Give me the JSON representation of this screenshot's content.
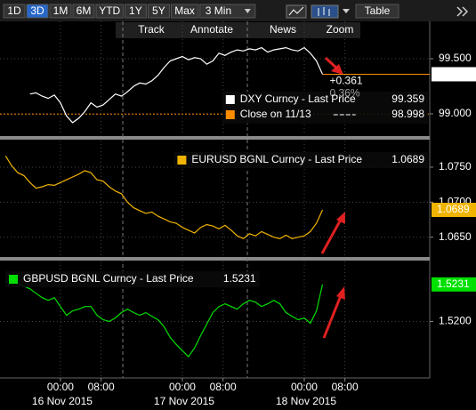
{
  "toolbar": {
    "ranges": [
      "1D",
      "3D",
      "1M",
      "6M",
      "YTD",
      "1Y",
      "5Y",
      "Max"
    ],
    "active": "3D",
    "interval": "3 Min",
    "table": "Table",
    "tools": [
      "Track",
      "Annotate",
      "News",
      "Zoom"
    ]
  },
  "x_axis": {
    "xlim": [
      -11.9,
      72.7
    ],
    "xticks": [
      {
        "value": 0,
        "label": "00:00"
      },
      {
        "value": 8,
        "label": "08:00"
      },
      {
        "value": 24,
        "label": "00:00"
      },
      {
        "value": 32,
        "label": "08:00"
      },
      {
        "value": 48,
        "label": "00:00"
      },
      {
        "value": 56,
        "label": "08:00"
      }
    ],
    "dates": [
      "16 Nov 2015",
      "17 Nov 2015",
      "18 Nov 2015"
    ]
  },
  "chart_data": [
    {
      "type": "line",
      "x": [
        -6,
        -4.8,
        -3.6,
        -2.4,
        -1.2,
        0,
        1.2,
        2.4,
        3.6,
        4.8,
        6,
        7.2,
        8.4,
        9.6,
        10.8,
        12,
        13.2,
        14.4,
        15.6,
        16.8,
        18,
        19.2,
        20.4,
        21.6,
        22.8,
        24,
        25.2,
        26.4,
        27.6,
        28.8,
        30,
        31.2,
        32.4,
        33.6,
        34.8,
        36,
        37.2,
        38.4,
        39.6,
        40.8,
        42,
        43.2,
        44.4,
        45.6,
        46.8,
        48,
        49.2,
        50.4,
        51.6
      ],
      "series": [
        {
          "name": "DXY Curncy - Last Price",
          "color": "#ffffff",
          "values": [
            99.18,
            99.19,
            99.16,
            99.14,
            99.17,
            99.1,
            98.98,
            98.92,
            98.96,
            99.02,
            99.1,
            99.06,
            99.08,
            99.13,
            99.18,
            99.16,
            99.2,
            99.25,
            99.28,
            99.27,
            99.3,
            99.35,
            99.42,
            99.48,
            99.5,
            99.52,
            99.49,
            99.51,
            99.5,
            99.45,
            99.48,
            99.55,
            99.53,
            99.56,
            99.58,
            99.57,
            99.59,
            99.58,
            99.6,
            99.56,
            99.58,
            99.59,
            99.6,
            99.58,
            99.57,
            99.6,
            99.55,
            99.48,
            99.359
          ]
        }
      ],
      "close": {
        "name": "Close on 11/13",
        "color": "#ff8c00",
        "value": 98.998
      },
      "annotations": [
        "+0.361",
        "0.36%"
      ],
      "ylim": [
        98.806,
        99.839
      ],
      "yticks": [
        {
          "value": 99.5,
          "label": "99.500"
        },
        {
          "value": 99.0,
          "label": "99.000"
        }
      ]
    },
    {
      "type": "line",
      "x": [
        -10.8,
        -9.6,
        -8.4,
        -7.2,
        -6,
        -4.8,
        -3.6,
        -2.4,
        -1.2,
        0,
        1.2,
        2.4,
        3.6,
        4.8,
        6,
        7.2,
        8.4,
        9.6,
        10.8,
        12,
        13.2,
        14.4,
        15.6,
        16.8,
        18,
        19.2,
        20.4,
        21.6,
        22.8,
        24,
        25.2,
        26.4,
        27.6,
        28.8,
        30,
        31.2,
        32.4,
        33.6,
        34.8,
        36,
        37.2,
        38.4,
        39.6,
        40.8,
        42,
        43.2,
        44.4,
        45.6,
        46.8,
        48,
        49.2,
        50.4,
        51.6
      ],
      "series": [
        {
          "name": "EURUSD BGNL Curncy - Last Price",
          "color": "#f0b400",
          "values": [
            1.0766,
            1.0752,
            1.0742,
            1.0738,
            1.0728,
            1.072,
            1.0722,
            1.0725,
            1.0724,
            1.0728,
            1.0732,
            1.0736,
            1.074,
            1.0745,
            1.0742,
            1.0732,
            1.073,
            1.0722,
            1.0716,
            1.0712,
            1.07,
            1.0692,
            1.0688,
            1.0684,
            1.0686,
            1.068,
            1.0676,
            1.0672,
            1.067,
            1.0664,
            1.066,
            1.0656,
            1.0664,
            1.0668,
            1.0666,
            1.0662,
            1.0667,
            1.066,
            1.0652,
            1.0648,
            1.0655,
            1.0652,
            1.0658,
            1.0654,
            1.065,
            1.0648,
            1.0653,
            1.0648,
            1.065,
            1.0652,
            1.0658,
            1.067,
            1.0689
          ]
        }
      ],
      "ylim": [
        1.0623,
        1.0788
      ],
      "yticks": [
        {
          "value": 1.075,
          "label": "1.0750"
        },
        {
          "value": 1.07,
          "label": "1.0700"
        },
        {
          "value": 1.065,
          "label": "1.0650"
        }
      ]
    },
    {
      "type": "line",
      "x": [
        -10.8,
        -9.6,
        -8.4,
        -7.2,
        -6,
        -4.8,
        -3.6,
        -2.4,
        -1.2,
        0,
        1.2,
        2.4,
        3.6,
        4.8,
        6,
        7.2,
        8.4,
        9.6,
        10.8,
        12,
        13.2,
        14.4,
        15.6,
        16.8,
        18,
        19.2,
        20.4,
        21.6,
        22.8,
        24,
        25.2,
        26.4,
        27.6,
        28.8,
        30,
        31.2,
        32.4,
        33.6,
        34.8,
        36,
        37.2,
        38.4,
        39.6,
        40.8,
        42,
        43.2,
        44.4,
        45.6,
        46.8,
        48,
        49.2,
        50.4,
        51.6
      ],
      "series": [
        {
          "name": "GBPUSD BGNL Curncy - Last Price",
          "color": "#00e000",
          "values": [
            1.52325,
            1.52369,
            1.52325,
            1.52295,
            1.52273,
            1.52236,
            1.52199,
            1.52177,
            1.52199,
            1.52125,
            1.52052,
            1.52089,
            1.52103,
            1.52125,
            1.52125,
            1.52052,
            1.52015,
            1.52,
            1.5203,
            1.52074,
            1.52103,
            1.52074,
            1.52052,
            1.52074,
            1.52044,
            1.52015,
            1.51956,
            1.51867,
            1.51808,
            1.51756,
            1.51705,
            1.51779,
            1.51882,
            1.51978,
            1.52074,
            1.52125,
            1.52148,
            1.52125,
            1.52103,
            1.52148,
            1.52177,
            1.52162,
            1.52125,
            1.52148,
            1.52177,
            1.52148,
            1.52074,
            1.52044,
            1.52015,
            1.5203,
            1.51985,
            1.52089,
            1.5231
          ]
        }
      ],
      "ylim": [
        1.51535,
        1.52502
      ],
      "yticks": [
        {
          "value": 1.52,
          "label": "1.5200"
        }
      ]
    }
  ]
}
